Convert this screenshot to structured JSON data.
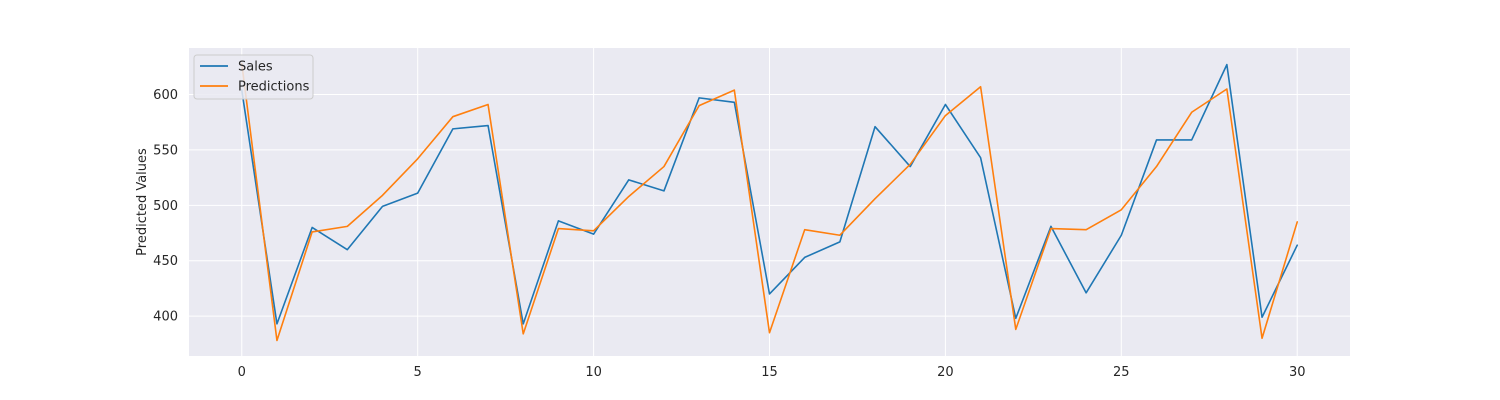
{
  "chart_data": {
    "type": "line",
    "title": "",
    "xlabel": "",
    "ylabel": "Predicted Values",
    "xlim": [
      -1.5,
      31.5
    ],
    "ylim": [
      364,
      642
    ],
    "xticks": [
      0,
      5,
      10,
      15,
      20,
      25,
      30
    ],
    "yticks": [
      400,
      450,
      500,
      550,
      600
    ],
    "grid": true,
    "legend_position": "top-left",
    "x": [
      0,
      1,
      2,
      3,
      4,
      5,
      6,
      7,
      8,
      9,
      10,
      11,
      12,
      13,
      14,
      15,
      16,
      17,
      18,
      19,
      20,
      21,
      22,
      23,
      24,
      25,
      26,
      27,
      28,
      29,
      30
    ],
    "series": [
      {
        "name": "Sales",
        "color": "#1f77b4",
        "values": [
          604,
          393,
          480,
          460,
          499,
          511,
          569,
          572,
          393,
          486,
          474,
          523,
          513,
          597,
          593,
          420,
          453,
          467,
          571,
          535,
          591,
          543,
          398,
          481,
          421,
          473,
          559,
          559,
          627,
          399,
          464
        ]
      },
      {
        "name": "Predictions",
        "color": "#ff7f0e",
        "values": [
          628,
          378,
          476,
          481,
          509,
          542,
          580,
          591,
          384,
          479,
          477,
          508,
          535,
          590,
          604,
          385,
          478,
          473,
          506,
          537,
          581,
          607,
          388,
          479,
          478,
          496,
          535,
          584,
          605,
          380,
          485
        ]
      }
    ]
  },
  "colors": {
    "plot_background": "#eaeaf2",
    "grid": "#ffffff",
    "text": "#262626"
  }
}
